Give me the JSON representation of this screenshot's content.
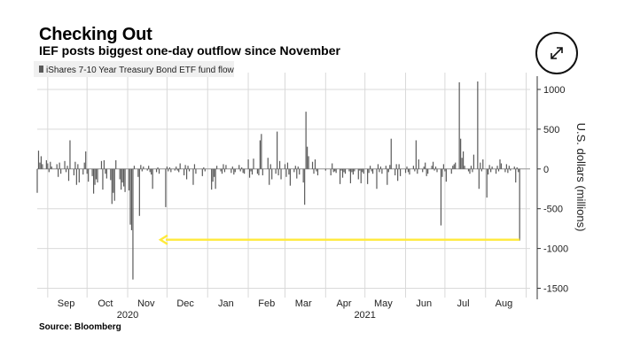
{
  "page": {
    "title": "Checking Out",
    "subtitle": "IEF posts biggest one-day outflow since November",
    "source": "Source: Bloomberg"
  },
  "colors": {
    "bars": "#5a5a5a",
    "grid": "#d9d9d9",
    "arrow": "#ffea3a",
    "legend_bg": "#f0f0f0"
  },
  "chart_data": {
    "type": "bar",
    "legend": "iShares 7-10 Year Treasury Bond ETF fund flow",
    "ylabel": "U.S. dollars (millions)",
    "ylim": [
      -1550,
      1100
    ],
    "yticks": [
      1000,
      500,
      0,
      -500,
      -1000,
      -1500
    ],
    "ytick_labels": [
      "1000",
      "500",
      "0",
      "-500",
      "-1000",
      "-1500"
    ],
    "grid": true,
    "axis_side": "right",
    "x_start": "2020-08-24",
    "x_end": "2021-09-04",
    "month_labels": [
      {
        "label": "Sep",
        "date": "2020-09-15"
      },
      {
        "label": "Oct",
        "date": "2020-10-15"
      },
      {
        "label": "Nov",
        "date": "2020-11-15"
      },
      {
        "label": "Dec",
        "date": "2020-12-15"
      },
      {
        "label": "Jan",
        "date": "2021-01-15"
      },
      {
        "label": "Feb",
        "date": "2021-02-15"
      },
      {
        "label": "Mar",
        "date": "2021-03-15"
      },
      {
        "label": "Apr",
        "date": "2021-04-15"
      },
      {
        "label": "May",
        "date": "2021-05-15"
      },
      {
        "label": "Jun",
        "date": "2021-06-15"
      },
      {
        "label": "Jul",
        "date": "2021-07-15"
      },
      {
        "label": "Aug",
        "date": "2021-08-15"
      }
    ],
    "year_labels": [
      {
        "label": "2020",
        "date": "2020-11-01"
      },
      {
        "label": "2021",
        "date": "2021-05-01"
      }
    ],
    "annotation": {
      "type": "arrow",
      "from_date": "2021-08-27",
      "to_date": "2020-11-26",
      "y": -890
    },
    "points": [
      {
        "date": "2020-08-24",
        "value": -300
      },
      {
        "date": "2020-08-25",
        "value": 230
      },
      {
        "date": "2020-08-26",
        "value": 80
      },
      {
        "date": "2020-08-27",
        "value": 160
      },
      {
        "date": "2020-08-28",
        "value": 60
      },
      {
        "date": "2020-08-31",
        "value": 110
      },
      {
        "date": "2020-09-01",
        "value": 70
      },
      {
        "date": "2020-09-02",
        "value": -40
      },
      {
        "date": "2020-09-03",
        "value": 90
      },
      {
        "date": "2020-09-04",
        "value": 30
      },
      {
        "date": "2020-09-08",
        "value": 60
      },
      {
        "date": "2020-09-09",
        "value": -100
      },
      {
        "date": "2020-09-10",
        "value": 80
      },
      {
        "date": "2020-09-11",
        "value": -60
      },
      {
        "date": "2020-09-14",
        "value": 100
      },
      {
        "date": "2020-09-15",
        "value": -40
      },
      {
        "date": "2020-09-16",
        "value": 40
      },
      {
        "date": "2020-09-17",
        "value": -150
      },
      {
        "date": "2020-09-18",
        "value": 360
      },
      {
        "date": "2020-09-21",
        "value": -80
      },
      {
        "date": "2020-09-22",
        "value": 90
      },
      {
        "date": "2020-09-23",
        "value": -200
      },
      {
        "date": "2020-09-24",
        "value": 60
      },
      {
        "date": "2020-09-25",
        "value": -170
      },
      {
        "date": "2020-09-28",
        "value": -70
      },
      {
        "date": "2020-09-29",
        "value": 80
      },
      {
        "date": "2020-09-30",
        "value": 220
      },
      {
        "date": "2020-10-01",
        "value": -60
      },
      {
        "date": "2020-10-02",
        "value": -160
      },
      {
        "date": "2020-10-05",
        "value": -90
      },
      {
        "date": "2020-10-06",
        "value": -310
      },
      {
        "date": "2020-10-07",
        "value": -200
      },
      {
        "date": "2020-10-08",
        "value": -130
      },
      {
        "date": "2020-10-09",
        "value": -170
      },
      {
        "date": "2020-10-12",
        "value": 100
      },
      {
        "date": "2020-10-13",
        "value": -260
      },
      {
        "date": "2020-10-14",
        "value": 110
      },
      {
        "date": "2020-10-15",
        "value": -60
      },
      {
        "date": "2020-10-16",
        "value": -120
      },
      {
        "date": "2020-10-19",
        "value": -140
      },
      {
        "date": "2020-10-20",
        "value": -440
      },
      {
        "date": "2020-10-21",
        "value": -300
      },
      {
        "date": "2020-10-22",
        "value": -400
      },
      {
        "date": "2020-10-23",
        "value": 110
      },
      {
        "date": "2020-10-26",
        "value": -130
      },
      {
        "date": "2020-10-27",
        "value": -260
      },
      {
        "date": "2020-10-28",
        "value": -170
      },
      {
        "date": "2020-10-29",
        "value": -220
      },
      {
        "date": "2020-10-30",
        "value": -290
      },
      {
        "date": "2020-11-02",
        "value": -270
      },
      {
        "date": "2020-11-03",
        "value": -700
      },
      {
        "date": "2020-11-04",
        "value": -770
      },
      {
        "date": "2020-11-05",
        "value": -1390
      },
      {
        "date": "2020-11-06",
        "value": 40
      },
      {
        "date": "2020-11-09",
        "value": -100
      },
      {
        "date": "2020-11-10",
        "value": -590
      },
      {
        "date": "2020-11-11",
        "value": 50
      },
      {
        "date": "2020-11-12",
        "value": -30
      },
      {
        "date": "2020-11-13",
        "value": 30
      },
      {
        "date": "2020-11-16",
        "value": -20
      },
      {
        "date": "2020-11-17",
        "value": 40
      },
      {
        "date": "2020-11-18",
        "value": -40
      },
      {
        "date": "2020-11-19",
        "value": -70
      },
      {
        "date": "2020-11-20",
        "value": -250
      },
      {
        "date": "2020-11-23",
        "value": -40
      },
      {
        "date": "2020-11-24",
        "value": 20
      },
      {
        "date": "2020-11-25",
        "value": -60
      },
      {
        "date": "2020-11-30",
        "value": -480
      },
      {
        "date": "2020-12-01",
        "value": 30
      },
      {
        "date": "2020-12-02",
        "value": -30
      },
      {
        "date": "2020-12-03",
        "value": 20
      },
      {
        "date": "2020-12-04",
        "value": -40
      },
      {
        "date": "2020-12-07",
        "value": -20
      },
      {
        "date": "2020-12-08",
        "value": 30
      },
      {
        "date": "2020-12-09",
        "value": -20
      },
      {
        "date": "2020-12-10",
        "value": -40
      },
      {
        "date": "2020-12-11",
        "value": 70
      },
      {
        "date": "2020-12-14",
        "value": -80
      },
      {
        "date": "2020-12-15",
        "value": 50
      },
      {
        "date": "2020-12-16",
        "value": -130
      },
      {
        "date": "2020-12-17",
        "value": 40
      },
      {
        "date": "2020-12-18",
        "value": -30
      },
      {
        "date": "2020-12-21",
        "value": -200
      },
      {
        "date": "2020-12-22",
        "value": 60
      },
      {
        "date": "2020-12-23",
        "value": -60
      },
      {
        "date": "2020-12-28",
        "value": -90
      },
      {
        "date": "2020-12-29",
        "value": 20
      },
      {
        "date": "2020-12-30",
        "value": -30
      },
      {
        "date": "2021-01-04",
        "value": -260
      },
      {
        "date": "2021-01-05",
        "value": -160
      },
      {
        "date": "2021-01-06",
        "value": -100
      },
      {
        "date": "2021-01-07",
        "value": -250
      },
      {
        "date": "2021-01-08",
        "value": 40
      },
      {
        "date": "2021-01-11",
        "value": -30
      },
      {
        "date": "2021-01-12",
        "value": -60
      },
      {
        "date": "2021-01-13",
        "value": 60
      },
      {
        "date": "2021-01-14",
        "value": -40
      },
      {
        "date": "2021-01-15",
        "value": 50
      },
      {
        "date": "2021-01-19",
        "value": -50
      },
      {
        "date": "2021-01-20",
        "value": 30
      },
      {
        "date": "2021-01-21",
        "value": -70
      },
      {
        "date": "2021-01-22",
        "value": -40
      },
      {
        "date": "2021-01-25",
        "value": 50
      },
      {
        "date": "2021-01-26",
        "value": -30
      },
      {
        "date": "2021-01-27",
        "value": 20
      },
      {
        "date": "2021-01-28",
        "value": -50
      },
      {
        "date": "2021-01-29",
        "value": -60
      },
      {
        "date": "2021-02-01",
        "value": 120
      },
      {
        "date": "2021-02-02",
        "value": -110
      },
      {
        "date": "2021-02-03",
        "value": -30
      },
      {
        "date": "2021-02-04",
        "value": -70
      },
      {
        "date": "2021-02-05",
        "value": 130
      },
      {
        "date": "2021-02-08",
        "value": -60
      },
      {
        "date": "2021-02-09",
        "value": -80
      },
      {
        "date": "2021-02-10",
        "value": 360
      },
      {
        "date": "2021-02-11",
        "value": 440
      },
      {
        "date": "2021-02-12",
        "value": -80
      },
      {
        "date": "2021-02-16",
        "value": 140
      },
      {
        "date": "2021-02-17",
        "value": -200
      },
      {
        "date": "2021-02-18",
        "value": 60
      },
      {
        "date": "2021-02-19",
        "value": -130
      },
      {
        "date": "2021-02-22",
        "value": -60
      },
      {
        "date": "2021-02-23",
        "value": 470
      },
      {
        "date": "2021-02-24",
        "value": -80
      },
      {
        "date": "2021-02-25",
        "value": 100
      },
      {
        "date": "2021-02-26",
        "value": -130
      },
      {
        "date": "2021-03-01",
        "value": 60
      },
      {
        "date": "2021-03-02",
        "value": -100
      },
      {
        "date": "2021-03-03",
        "value": 80
      },
      {
        "date": "2021-03-04",
        "value": -70
      },
      {
        "date": "2021-03-05",
        "value": -210
      },
      {
        "date": "2021-03-08",
        "value": -40
      },
      {
        "date": "2021-03-09",
        "value": 40
      },
      {
        "date": "2021-03-10",
        "value": -120
      },
      {
        "date": "2021-03-11",
        "value": 30
      },
      {
        "date": "2021-03-12",
        "value": -70
      },
      {
        "date": "2021-03-15",
        "value": -170
      },
      {
        "date": "2021-03-16",
        "value": -450
      },
      {
        "date": "2021-03-17",
        "value": 720
      },
      {
        "date": "2021-03-18",
        "value": 280
      },
      {
        "date": "2021-03-19",
        "value": 160
      },
      {
        "date": "2021-03-22",
        "value": 90
      },
      {
        "date": "2021-03-23",
        "value": -60
      },
      {
        "date": "2021-03-24",
        "value": 120
      },
      {
        "date": "2021-03-25",
        "value": -30
      },
      {
        "date": "2021-03-26",
        "value": -80
      },
      {
        "date": "2021-04-01",
        "value": -20
      },
      {
        "date": "2021-04-05",
        "value": -80
      },
      {
        "date": "2021-04-06",
        "value": 70
      },
      {
        "date": "2021-04-07",
        "value": -40
      },
      {
        "date": "2021-04-08",
        "value": -30
      },
      {
        "date": "2021-04-09",
        "value": -50
      },
      {
        "date": "2021-04-12",
        "value": -190
      },
      {
        "date": "2021-04-13",
        "value": -20
      },
      {
        "date": "2021-04-14",
        "value": -110
      },
      {
        "date": "2021-04-15",
        "value": -40
      },
      {
        "date": "2021-04-16",
        "value": -60
      },
      {
        "date": "2021-04-19",
        "value": -30
      },
      {
        "date": "2021-04-20",
        "value": -180
      },
      {
        "date": "2021-04-21",
        "value": -40
      },
      {
        "date": "2021-04-22",
        "value": -70
      },
      {
        "date": "2021-04-23",
        "value": -30
      },
      {
        "date": "2021-04-26",
        "value": -130
      },
      {
        "date": "2021-04-27",
        "value": -20
      },
      {
        "date": "2021-04-28",
        "value": -180
      },
      {
        "date": "2021-04-29",
        "value": -40
      },
      {
        "date": "2021-04-30",
        "value": -60
      },
      {
        "date": "2021-05-03",
        "value": -190
      },
      {
        "date": "2021-05-04",
        "value": -50
      },
      {
        "date": "2021-05-05",
        "value": 40
      },
      {
        "date": "2021-05-06",
        "value": -30
      },
      {
        "date": "2021-05-07",
        "value": -60
      },
      {
        "date": "2021-05-10",
        "value": -250
      },
      {
        "date": "2021-05-11",
        "value": 60
      },
      {
        "date": "2021-05-12",
        "value": -40
      },
      {
        "date": "2021-05-13",
        "value": 30
      },
      {
        "date": "2021-05-14",
        "value": -60
      },
      {
        "date": "2021-05-17",
        "value": 40
      },
      {
        "date": "2021-05-18",
        "value": -200
      },
      {
        "date": "2021-05-19",
        "value": -40
      },
      {
        "date": "2021-05-20",
        "value": 50
      },
      {
        "date": "2021-05-21",
        "value": 380
      },
      {
        "date": "2021-05-24",
        "value": -80
      },
      {
        "date": "2021-05-25",
        "value": 60
      },
      {
        "date": "2021-05-26",
        "value": -150
      },
      {
        "date": "2021-05-27",
        "value": 60
      },
      {
        "date": "2021-05-28",
        "value": -90
      },
      {
        "date": "2021-06-01",
        "value": -50
      },
      {
        "date": "2021-06-02",
        "value": 30
      },
      {
        "date": "2021-06-03",
        "value": -40
      },
      {
        "date": "2021-06-04",
        "value": -70
      },
      {
        "date": "2021-06-07",
        "value": 40
      },
      {
        "date": "2021-06-08",
        "value": -30
      },
      {
        "date": "2021-06-09",
        "value": 360
      },
      {
        "date": "2021-06-10",
        "value": -60
      },
      {
        "date": "2021-06-11",
        "value": 120
      },
      {
        "date": "2021-06-14",
        "value": -40
      },
      {
        "date": "2021-06-15",
        "value": 30
      },
      {
        "date": "2021-06-16",
        "value": 80
      },
      {
        "date": "2021-06-17",
        "value": -90
      },
      {
        "date": "2021-06-18",
        "value": -60
      },
      {
        "date": "2021-06-21",
        "value": 40
      },
      {
        "date": "2021-06-22",
        "value": 90
      },
      {
        "date": "2021-06-23",
        "value": -20
      },
      {
        "date": "2021-06-24",
        "value": 30
      },
      {
        "date": "2021-06-25",
        "value": -40
      },
      {
        "date": "2021-06-28",
        "value": -710
      },
      {
        "date": "2021-06-29",
        "value": -100
      },
      {
        "date": "2021-06-30",
        "value": 60
      },
      {
        "date": "2021-07-01",
        "value": -30
      },
      {
        "date": "2021-07-02",
        "value": -160
      },
      {
        "date": "2021-07-06",
        "value": -60
      },
      {
        "date": "2021-07-07",
        "value": 40
      },
      {
        "date": "2021-07-08",
        "value": 60
      },
      {
        "date": "2021-07-09",
        "value": 80
      },
      {
        "date": "2021-07-12",
        "value": 1090
      },
      {
        "date": "2021-07-13",
        "value": 380
      },
      {
        "date": "2021-07-14",
        "value": 140
      },
      {
        "date": "2021-07-15",
        "value": 220
      },
      {
        "date": "2021-07-16",
        "value": 40
      },
      {
        "date": "2021-07-19",
        "value": -30
      },
      {
        "date": "2021-07-20",
        "value": -60
      },
      {
        "date": "2021-07-21",
        "value": 40
      },
      {
        "date": "2021-07-22",
        "value": -40
      },
      {
        "date": "2021-07-23",
        "value": 180
      },
      {
        "date": "2021-07-26",
        "value": 1100
      },
      {
        "date": "2021-07-27",
        "value": -250
      },
      {
        "date": "2021-07-28",
        "value": 80
      },
      {
        "date": "2021-07-29",
        "value": -30
      },
      {
        "date": "2021-07-30",
        "value": 120
      },
      {
        "date": "2021-08-02",
        "value": -360
      },
      {
        "date": "2021-08-03",
        "value": -70
      },
      {
        "date": "2021-08-04",
        "value": 50
      },
      {
        "date": "2021-08-05",
        "value": -40
      },
      {
        "date": "2021-08-06",
        "value": 30
      },
      {
        "date": "2021-08-09",
        "value": -60
      },
      {
        "date": "2021-08-10",
        "value": 40
      },
      {
        "date": "2021-08-11",
        "value": -30
      },
      {
        "date": "2021-08-12",
        "value": 120
      },
      {
        "date": "2021-08-13",
        "value": 70
      },
      {
        "date": "2021-08-16",
        "value": -40
      },
      {
        "date": "2021-08-17",
        "value": 60
      },
      {
        "date": "2021-08-18",
        "value": -50
      },
      {
        "date": "2021-08-19",
        "value": 40
      },
      {
        "date": "2021-08-20",
        "value": -20
      },
      {
        "date": "2021-08-23",
        "value": 30
      },
      {
        "date": "2021-08-24",
        "value": -170
      },
      {
        "date": "2021-08-25",
        "value": 20
      },
      {
        "date": "2021-08-26",
        "value": -40
      },
      {
        "date": "2021-08-27",
        "value": -900
      }
    ]
  }
}
